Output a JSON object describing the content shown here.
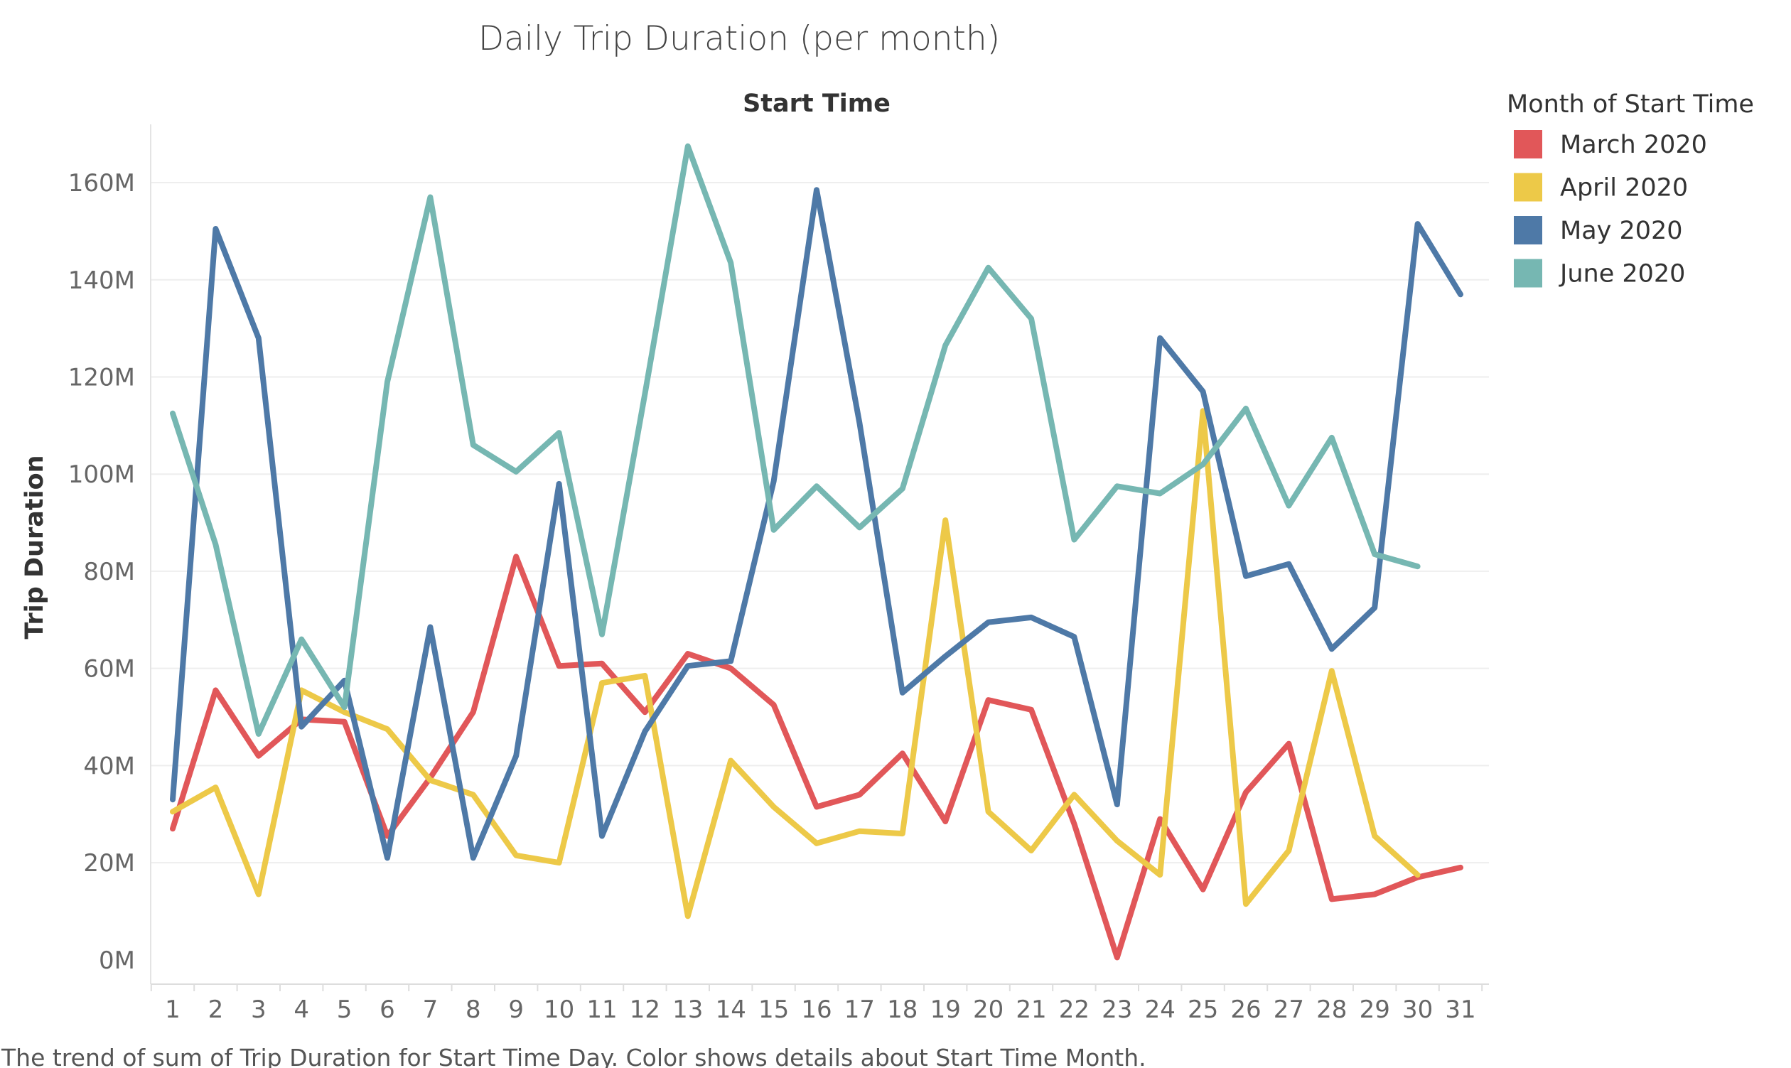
{
  "chart_data": {
    "type": "line",
    "title": "Daily Trip Duration (per month)",
    "x_header": "Start Time",
    "ylabel": "Trip Duration",
    "caption": "The trend of sum of Trip Duration for Start Time Day.  Color shows details about Start Time Month.",
    "legend_title": "Month of Start Time",
    "legend_position": "right",
    "grid": true,
    "x": [
      1,
      2,
      3,
      4,
      5,
      6,
      7,
      8,
      9,
      10,
      11,
      12,
      13,
      14,
      15,
      16,
      17,
      18,
      19,
      20,
      21,
      22,
      23,
      24,
      25,
      26,
      27,
      28,
      29,
      30,
      31
    ],
    "x_tick_labels": [
      "1",
      "2",
      "3",
      "4",
      "5",
      "6",
      "7",
      "8",
      "9",
      "10",
      "11",
      "12",
      "13",
      "14",
      "15",
      "16",
      "17",
      "18",
      "19",
      "20",
      "21",
      "22",
      "23",
      "24",
      "25",
      "26",
      "27",
      "28",
      "29",
      "30",
      "31"
    ],
    "y_ticks": [
      0,
      20,
      40,
      60,
      80,
      100,
      120,
      140,
      160
    ],
    "y_tick_labels": [
      "0M",
      "20M",
      "40M",
      "60M",
      "80M",
      "100M",
      "120M",
      "140M",
      "160M"
    ],
    "ylim": [
      -5,
      172
    ],
    "y_unit": "M",
    "series": [
      {
        "name": "March 2020",
        "color": "#e15759",
        "values": [
          27,
          55.5,
          42,
          49.5,
          49,
          25.5,
          37.5,
          51,
          83,
          60.5,
          61,
          51,
          63,
          60,
          52.5,
          31.5,
          34,
          42.5,
          28.5,
          53.5,
          51.5,
          28,
          0.5,
          29,
          14.5,
          34.5,
          44.5,
          12.5,
          13.5,
          17,
          19
        ]
      },
      {
        "name": "April 2020",
        "color": "#edc948",
        "values": [
          30.5,
          35.5,
          13.5,
          55.5,
          51,
          47.5,
          37,
          34,
          21.5,
          20,
          57,
          58.5,
          9,
          41,
          31.5,
          24,
          26.5,
          26,
          90.5,
          30.5,
          22.5,
          34,
          24.5,
          17.5,
          113,
          11.5,
          22.5,
          59.5,
          25.5,
          17.5,
          null
        ]
      },
      {
        "name": "May 2020",
        "color": "#4e79a7",
        "values": [
          33,
          150.5,
          128,
          48,
          57.5,
          21,
          68.5,
          21,
          42,
          98,
          25.5,
          47,
          60.5,
          61.5,
          98.5,
          158.5,
          110.5,
          55,
          62.5,
          69.5,
          70.5,
          66.5,
          32,
          128,
          117,
          79,
          81.5,
          64,
          72.5,
          151.5,
          137
        ]
      },
      {
        "name": "June 2020",
        "color": "#76b7b2",
        "values": [
          112.5,
          85.5,
          46.5,
          66,
          52,
          119,
          157,
          106,
          100.5,
          108.5,
          67,
          116.5,
          167.5,
          143.5,
          88.5,
          97.5,
          89,
          97,
          126.5,
          142.5,
          132,
          86.5,
          97.5,
          96,
          102,
          113.5,
          93.5,
          107.5,
          83.5,
          81,
          null
        ]
      }
    ]
  }
}
